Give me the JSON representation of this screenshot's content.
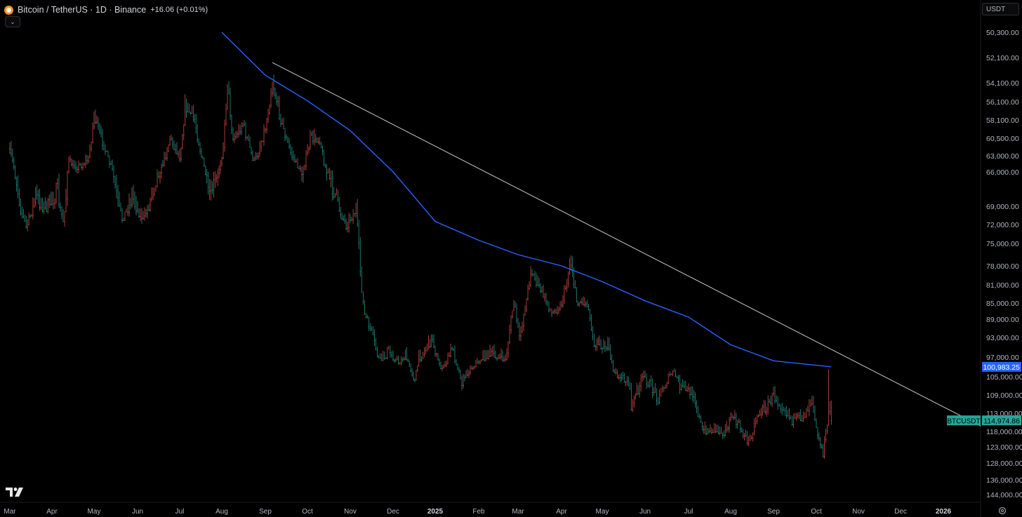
{
  "header": {
    "title": "Bitcoin / TetherUS · 1D · Binance",
    "change": "+16.06 (+0.01%)"
  },
  "currency": "USDT",
  "colors": {
    "background": "#000000",
    "up": "#26a69a",
    "down": "#ef5350",
    "ma_line": "#2962ff",
    "trendline": "#c8c8c8",
    "price_label_bg": "#26a69a",
    "ma_label_bg": "#2962ff"
  },
  "chart_data": {
    "type": "candlestick",
    "symbol_label": "BTCUSDT",
    "last_price": "114,974.86",
    "last_price_value": 114974.86,
    "ma_value_label": "100,983.25",
    "ma_value": 100983.25,
    "y_ticks": [
      "144,000.00",
      "136,000.00",
      "128,000.00",
      "123,000.00",
      "118,000.00",
      "113,000.00",
      "109,000.00",
      "105,000.00",
      "97,000.00",
      "93,000.00",
      "89,000.00",
      "85,000.00",
      "81,000.00",
      "78,000.00",
      "75,000.00",
      "72,000.00",
      "69,000.00",
      "66,000.00",
      "63,000.00",
      "60,500.00",
      "58,100.00",
      "56,100.00",
      "54,100.00",
      "52,100.00",
      "50,300.00"
    ],
    "y_tick_values": [
      144000,
      136000,
      128000,
      123000,
      118000,
      113000,
      109000,
      105000,
      97000,
      93000,
      89000,
      85000,
      81000,
      78000,
      75000,
      72000,
      69000,
      66000,
      63000,
      60500,
      58100,
      56100,
      54100,
      52100,
      50300
    ],
    "x_ticks": [
      "Mar",
      "Apr",
      "May",
      "Jun",
      "Jul",
      "Aug",
      "Sep",
      "Oct",
      "Nov",
      "Dec",
      "2025",
      "Feb",
      "Mar",
      "Apr",
      "May",
      "Jun",
      "Jul",
      "Aug",
      "Sep",
      "Oct",
      "Nov",
      "Dec",
      "2026"
    ],
    "x_tick_dates": [
      "2024-03-01",
      "2024-04-01",
      "2024-05-01",
      "2024-06-01",
      "2024-07-01",
      "2024-08-01",
      "2024-09-01",
      "2024-10-01",
      "2024-11-01",
      "2024-12-01",
      "2025-01-01",
      "2025-02-01",
      "2025-03-01",
      "2025-04-01",
      "2025-05-01",
      "2025-06-01",
      "2025-07-01",
      "2025-08-01",
      "2025-09-01",
      "2025-10-01",
      "2025-11-01",
      "2025-12-01",
      "2026-01-01"
    ],
    "x_range": [
      "2024-03-01",
      "2026-02-09"
    ],
    "close_series": [
      {
        "date": "2024-03-01",
        "close": 62000
      },
      {
        "date": "2024-03-05",
        "close": 66000
      },
      {
        "date": "2024-03-13",
        "close": 72500
      },
      {
        "date": "2024-03-20",
        "close": 68000
      },
      {
        "date": "2024-03-27",
        "close": 69500
      },
      {
        "date": "2024-04-05",
        "close": 67500
      },
      {
        "date": "2024-04-09",
        "close": 71500
      },
      {
        "date": "2024-04-13",
        "close": 64000
      },
      {
        "date": "2024-04-20",
        "close": 65000
      },
      {
        "date": "2024-04-27",
        "close": 63500
      },
      {
        "date": "2024-05-01",
        "close": 57500
      },
      {
        "date": "2024-05-08",
        "close": 61500
      },
      {
        "date": "2024-05-15",
        "close": 66500
      },
      {
        "date": "2024-05-21",
        "close": 71000
      },
      {
        "date": "2024-05-28",
        "close": 68000
      },
      {
        "date": "2024-06-05",
        "close": 71000
      },
      {
        "date": "2024-06-12",
        "close": 67500
      },
      {
        "date": "2024-06-18",
        "close": 65000
      },
      {
        "date": "2024-06-24",
        "close": 60500
      },
      {
        "date": "2024-07-01",
        "close": 63000
      },
      {
        "date": "2024-07-05",
        "close": 56500
      },
      {
        "date": "2024-07-12",
        "close": 58000
      },
      {
        "date": "2024-07-18",
        "close": 64000
      },
      {
        "date": "2024-07-22",
        "close": 68000
      },
      {
        "date": "2024-07-29",
        "close": 66500
      },
      {
        "date": "2024-08-02",
        "close": 61500
      },
      {
        "date": "2024-08-05",
        "close": 54000
      },
      {
        "date": "2024-08-09",
        "close": 60500
      },
      {
        "date": "2024-08-16",
        "close": 58500
      },
      {
        "date": "2024-08-24",
        "close": 64000
      },
      {
        "date": "2024-09-01",
        "close": 59000
      },
      {
        "date": "2024-09-06",
        "close": 53800
      },
      {
        "date": "2024-09-12",
        "close": 58000
      },
      {
        "date": "2024-09-19",
        "close": 62500
      },
      {
        "date": "2024-09-27",
        "close": 66000
      },
      {
        "date": "2024-10-03",
        "close": 60500
      },
      {
        "date": "2024-10-10",
        "close": 60500
      },
      {
        "date": "2024-10-15",
        "close": 66000
      },
      {
        "date": "2024-10-21",
        "close": 68000
      },
      {
        "date": "2024-10-29",
        "close": 72000
      },
      {
        "date": "2024-11-05",
        "close": 69500
      },
      {
        "date": "2024-11-11",
        "close": 88000
      },
      {
        "date": "2024-11-14",
        "close": 90000
      },
      {
        "date": "2024-11-22",
        "close": 98500
      },
      {
        "date": "2024-11-28",
        "close": 95500
      },
      {
        "date": "2024-12-05",
        "close": 99000
      },
      {
        "date": "2024-12-10",
        "close": 96500
      },
      {
        "date": "2024-12-17",
        "close": 106000
      },
      {
        "date": "2024-12-20",
        "close": 97500
      },
      {
        "date": "2024-12-30",
        "close": 93000
      },
      {
        "date": "2025-01-06",
        "close": 102000
      },
      {
        "date": "2025-01-13",
        "close": 94500
      },
      {
        "date": "2025-01-20",
        "close": 106000
      },
      {
        "date": "2025-01-27",
        "close": 101000
      },
      {
        "date": "2025-02-03",
        "close": 97500
      },
      {
        "date": "2025-02-10",
        "close": 96000
      },
      {
        "date": "2025-02-20",
        "close": 98000
      },
      {
        "date": "2025-02-26",
        "close": 84500
      },
      {
        "date": "2025-03-02",
        "close": 93500
      },
      {
        "date": "2025-03-10",
        "close": 78500
      },
      {
        "date": "2025-03-18",
        "close": 82500
      },
      {
        "date": "2025-03-25",
        "close": 87500
      },
      {
        "date": "2025-04-01",
        "close": 85000
      },
      {
        "date": "2025-04-08",
        "close": 76500
      },
      {
        "date": "2025-04-12",
        "close": 84500
      },
      {
        "date": "2025-04-20",
        "close": 85000
      },
      {
        "date": "2025-04-25",
        "close": 94000
      },
      {
        "date": "2025-05-05",
        "close": 94500
      },
      {
        "date": "2025-05-10",
        "close": 103500
      },
      {
        "date": "2025-05-20",
        "close": 106000
      },
      {
        "date": "2025-05-22",
        "close": 111500
      },
      {
        "date": "2025-05-31",
        "close": 104500
      },
      {
        "date": "2025-06-10",
        "close": 109500
      },
      {
        "date": "2025-06-20",
        "close": 103000
      },
      {
        "date": "2025-06-26",
        "close": 107500
      },
      {
        "date": "2025-07-05",
        "close": 108500
      },
      {
        "date": "2025-07-11",
        "close": 117500
      },
      {
        "date": "2025-07-20",
        "close": 117500
      },
      {
        "date": "2025-07-28",
        "close": 118000
      },
      {
        "date": "2025-08-02",
        "close": 113500
      },
      {
        "date": "2025-08-08",
        "close": 117000
      },
      {
        "date": "2025-08-14",
        "close": 121500
      },
      {
        "date": "2025-08-20",
        "close": 113500
      },
      {
        "date": "2025-08-28",
        "close": 111000
      },
      {
        "date": "2025-09-01",
        "close": 109000
      },
      {
        "date": "2025-09-08",
        "close": 111500
      },
      {
        "date": "2025-09-15",
        "close": 115500
      },
      {
        "date": "2025-09-22",
        "close": 113500
      },
      {
        "date": "2025-09-28",
        "close": 109500
      },
      {
        "date": "2025-10-03",
        "close": 120500
      },
      {
        "date": "2025-10-06",
        "close": 124500
      },
      {
        "date": "2025-10-10",
        "close": 113000
      },
      {
        "date": "2025-10-11",
        "close": 110500
      },
      {
        "date": "2025-10-12",
        "close": 114974.86
      }
    ],
    "ma_series": [
      {
        "date": "2024-08-01",
        "value": 50300
      },
      {
        "date": "2024-09-01",
        "value": 53500
      },
      {
        "date": "2024-10-01",
        "value": 56000
      },
      {
        "date": "2024-11-01",
        "value": 59500
      },
      {
        "date": "2024-12-01",
        "value": 66000
      },
      {
        "date": "2025-01-01",
        "value": 71500
      },
      {
        "date": "2025-02-01",
        "value": 74500
      },
      {
        "date": "2025-03-01",
        "value": 76500
      },
      {
        "date": "2025-04-01",
        "value": 78000
      },
      {
        "date": "2025-05-01",
        "value": 80500
      },
      {
        "date": "2025-06-01",
        "value": 84500
      },
      {
        "date": "2025-07-01",
        "value": 88500
      },
      {
        "date": "2025-08-01",
        "value": 94500
      },
      {
        "date": "2025-09-01",
        "value": 98500
      },
      {
        "date": "2025-10-12",
        "value": 100983.25
      }
    ],
    "trendline": {
      "start": {
        "date": "2024-09-06",
        "value": 52500
      },
      "end": {
        "date": "2026-02-09",
        "value": 116500
      }
    },
    "grid": false
  }
}
